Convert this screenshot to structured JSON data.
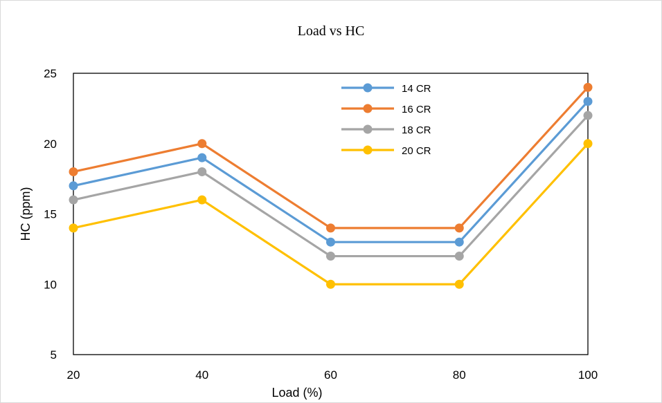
{
  "chart_data": {
    "type": "line",
    "title": "Load vs HC",
    "xlabel": "Load (%)",
    "ylabel": "HC (ppm)",
    "x": [
      20,
      40,
      60,
      80,
      100
    ],
    "ylim": [
      5,
      25
    ],
    "yticks": [
      5,
      10,
      15,
      20,
      25
    ],
    "grid": false,
    "legend_position": "top-right",
    "series": [
      {
        "name": "14 CR",
        "color": "#5B9BD5",
        "values": [
          17,
          19,
          13,
          13,
          23
        ]
      },
      {
        "name": "16 CR",
        "color": "#ED7D31",
        "values": [
          18,
          20,
          14,
          14,
          24
        ]
      },
      {
        "name": "18 CR",
        "color": "#A5A5A5",
        "values": [
          16,
          18,
          12,
          12,
          22
        ]
      },
      {
        "name": "20 CR",
        "color": "#FFC000",
        "values": [
          14,
          16,
          10,
          10,
          20
        ]
      }
    ]
  }
}
